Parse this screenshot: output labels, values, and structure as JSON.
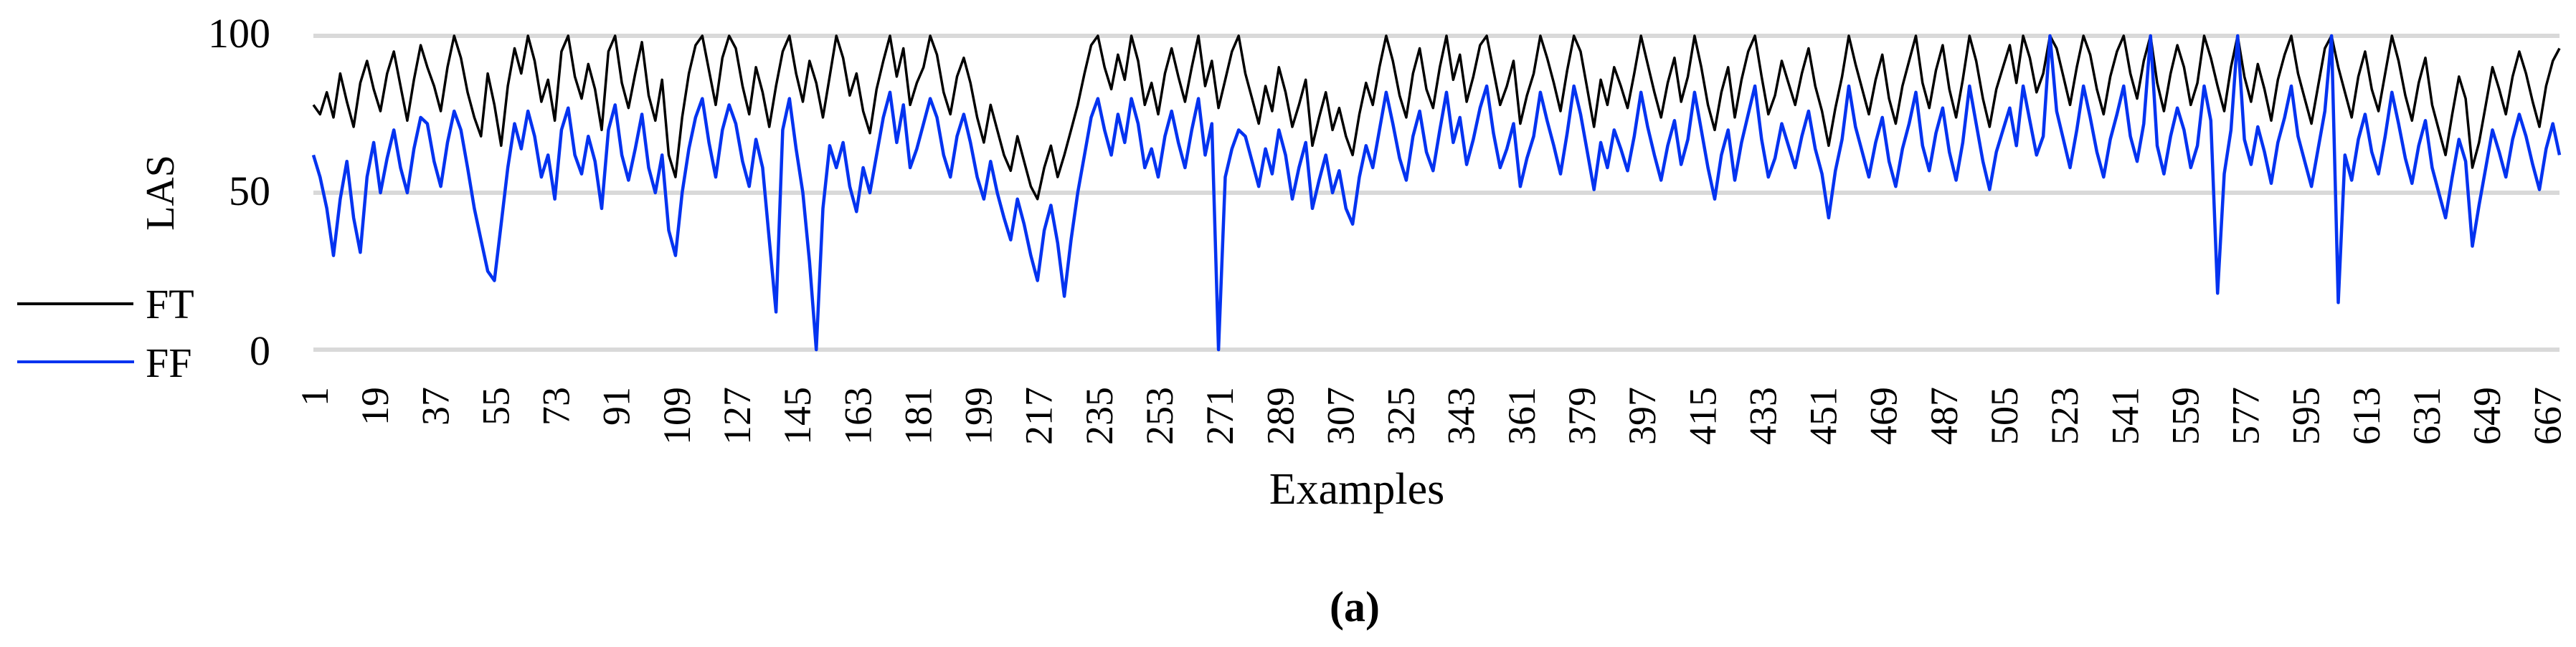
{
  "figure": {
    "caption": "(a)"
  },
  "chart_data": {
    "type": "line",
    "title": "",
    "xlabel": "Examples",
    "ylabel": "LAS",
    "ylim": [
      0,
      100
    ],
    "yticks": [
      "0",
      "50",
      "100"
    ],
    "xticks": [
      1,
      19,
      37,
      55,
      73,
      91,
      109,
      127,
      145,
      163,
      181,
      199,
      217,
      235,
      253,
      271,
      289,
      307,
      325,
      343,
      361,
      379,
      397,
      415,
      433,
      451,
      469,
      487,
      505,
      523,
      541,
      559,
      577,
      595,
      613,
      631,
      649,
      667
    ],
    "x_start": 1,
    "x_step": 2,
    "x_end": 671,
    "grid": "horizontal",
    "gridline_color": "#d9d9d9",
    "legend_position": "left",
    "series": [
      {
        "name": "FT",
        "color": "#000000",
        "values": [
          78,
          75,
          82,
          74,
          88,
          79,
          71,
          85,
          92,
          83,
          76,
          88,
          95,
          84,
          73,
          86,
          97,
          90,
          84,
          76,
          90,
          100,
          93,
          82,
          74,
          68,
          88,
          78,
          65,
          84,
          96,
          88,
          100,
          92,
          79,
          86,
          73,
          95,
          100,
          87,
          80,
          91,
          83,
          70,
          95,
          100,
          85,
          77,
          88,
          98,
          81,
          73,
          86,
          62,
          55,
          74,
          88,
          97,
          100,
          89,
          78,
          93,
          100,
          96,
          84,
          75,
          90,
          82,
          71,
          84,
          95,
          100,
          88,
          79,
          92,
          85,
          74,
          87,
          100,
          93,
          81,
          88,
          76,
          69,
          83,
          92,
          100,
          87,
          96,
          78,
          85,
          90,
          100,
          94,
          82,
          75,
          87,
          93,
          85,
          74,
          66,
          78,
          70,
          62,
          57,
          68,
          60,
          52,
          48,
          58,
          65,
          55,
          62,
          70,
          78,
          88,
          97,
          100,
          90,
          83,
          94,
          86,
          100,
          92,
          78,
          85,
          75,
          88,
          96,
          87,
          79,
          90,
          100,
          84,
          92,
          77,
          86,
          95,
          100,
          88,
          80,
          72,
          84,
          76,
          90,
          82,
          71,
          78,
          86,
          65,
          74,
          82,
          70,
          77,
          68,
          62,
          75,
          85,
          78,
          90,
          100,
          92,
          81,
          74,
          88,
          96,
          83,
          77,
          90,
          100,
          86,
          94,
          79,
          87,
          97,
          100,
          89,
          78,
          84,
          92,
          72,
          81,
          88,
          100,
          93,
          85,
          76,
          89,
          100,
          95,
          83,
          71,
          86,
          78,
          90,
          84,
          77,
          88,
          100,
          91,
          82,
          74,
          85,
          93,
          79,
          87,
          100,
          90,
          78,
          70,
          82,
          90,
          74,
          86,
          95,
          100,
          87,
          75,
          81,
          92,
          85,
          78,
          88,
          96,
          84,
          76,
          65,
          77,
          87,
          100,
          91,
          83,
          75,
          86,
          94,
          80,
          72,
          84,
          92,
          100,
          85,
          77,
          89,
          97,
          83,
          74,
          86,
          100,
          92,
          80,
          71,
          83,
          90,
          97,
          85,
          100,
          93,
          82,
          88,
          100,
          96,
          87,
          78,
          90,
          100,
          94,
          83,
          75,
          87,
          95,
          100,
          88,
          80,
          92,
          100,
          85,
          76,
          88,
          97,
          90,
          78,
          85,
          100,
          93,
          84,
          76,
          90,
          100,
          87,
          79,
          91,
          83,
          73,
          86,
          94,
          100,
          88,
          80,
          72,
          84,
          96,
          100,
          90,
          82,
          74,
          87,
          95,
          83,
          76,
          88,
          100,
          92,
          81,
          73,
          85,
          93,
          78,
          70,
          62,
          75,
          87,
          80,
          58,
          66,
          78,
          90,
          83,
          75,
          87,
          95,
          88,
          79,
          71,
          84,
          92,
          96
        ]
      },
      {
        "name": "FF",
        "color": "#0433f0",
        "values": [
          62,
          55,
          45,
          30,
          48,
          60,
          42,
          31,
          55,
          66,
          50,
          61,
          70,
          58,
          50,
          64,
          74,
          72,
          60,
          52,
          66,
          76,
          70,
          58,
          45,
          35,
          25,
          22,
          40,
          58,
          72,
          64,
          76,
          68,
          55,
          62,
          48,
          70,
          77,
          62,
          56,
          68,
          60,
          45,
          70,
          78,
          62,
          54,
          64,
          75,
          58,
          50,
          62,
          38,
          30,
          50,
          64,
          74,
          80,
          66,
          55,
          70,
          78,
          72,
          60,
          52,
          67,
          58,
          35,
          12,
          70,
          80,
          64,
          50,
          28,
          0,
          45,
          65,
          58,
          66,
          52,
          44,
          58,
          50,
          62,
          74,
          82,
          66,
          78,
          58,
          64,
          72,
          80,
          74,
          62,
          55,
          68,
          75,
          66,
          55,
          48,
          60,
          50,
          42,
          35,
          48,
          40,
          30,
          22,
          38,
          46,
          34,
          17,
          35,
          50,
          62,
          74,
          80,
          70,
          62,
          75,
          66,
          80,
          72,
          58,
          64,
          55,
          68,
          76,
          66,
          58,
          70,
          80,
          62,
          72,
          0,
          55,
          64,
          70,
          68,
          60,
          52,
          64,
          56,
          70,
          62,
          48,
          58,
          66,
          45,
          54,
          62,
          50,
          57,
          45,
          40,
          55,
          65,
          58,
          70,
          82,
          72,
          61,
          54,
          68,
          76,
          63,
          57,
          70,
          82,
          66,
          74,
          59,
          67,
          77,
          84,
          69,
          58,
          64,
          72,
          52,
          61,
          68,
          82,
          73,
          65,
          56,
          69,
          84,
          75,
          63,
          51,
          66,
          58,
          70,
          64,
          57,
          68,
          82,
          71,
          62,
          54,
          65,
          73,
          59,
          67,
          82,
          70,
          58,
          48,
          62,
          70,
          54,
          66,
          75,
          84,
          67,
          55,
          61,
          72,
          65,
          58,
          68,
          76,
          64,
          56,
          42,
          57,
          67,
          84,
          71,
          63,
          55,
          66,
          74,
          60,
          52,
          64,
          72,
          82,
          65,
          57,
          69,
          77,
          63,
          54,
          66,
          84,
          72,
          60,
          51,
          63,
          70,
          77,
          65,
          84,
          73,
          62,
          68,
          100,
          76,
          67,
          58,
          70,
          84,
          74,
          63,
          55,
          67,
          75,
          84,
          68,
          60,
          72,
          100,
          65,
          56,
          68,
          77,
          70,
          58,
          65,
          84,
          73,
          18,
          56,
          70,
          100,
          67,
          59,
          71,
          63,
          53,
          66,
          74,
          84,
          68,
          60,
          52,
          64,
          76,
          100,
          15,
          62,
          54,
          67,
          75,
          63,
          56,
          68,
          82,
          72,
          61,
          53,
          65,
          73,
          58,
          50,
          42,
          55,
          67,
          60,
          33,
          46,
          58,
          70,
          63,
          55,
          67,
          75,
          68,
          59,
          51,
          64,
          72,
          62
        ]
      }
    ]
  }
}
